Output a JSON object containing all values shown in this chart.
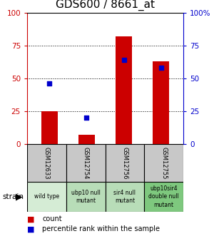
{
  "title": "GDS600 / 8661_at",
  "samples": [
    "GSM12633",
    "GSM12754",
    "GSM12756",
    "GSM12755"
  ],
  "strains": [
    "wild type",
    "ubp10 null\nmutant",
    "sir4 null\nmutant",
    "ubp10sir4\ndouble null\nmutant"
  ],
  "strain_colors": [
    "#d5ecd5",
    "#b8ddb8",
    "#b8ddb8",
    "#7ec87e"
  ],
  "red_values": [
    25,
    7,
    82,
    63
  ],
  "blue_values": [
    46,
    20,
    64,
    58
  ],
  "ylim": [
    0,
    100
  ],
  "bar_color": "#cc0000",
  "dot_color": "#0000cc",
  "yticks": [
    0,
    25,
    50,
    75,
    100
  ],
  "left_tick_color": "#cc0000",
  "right_tick_color": "#0000cc",
  "title_fontsize": 11,
  "tick_fontsize": 7.5,
  "bar_width": 0.45,
  "gsm_bg": "#c8c8c8",
  "gsm_fontsize": 6.0,
  "strain_fontsize": 5.5,
  "legend_fontsize": 7.0
}
